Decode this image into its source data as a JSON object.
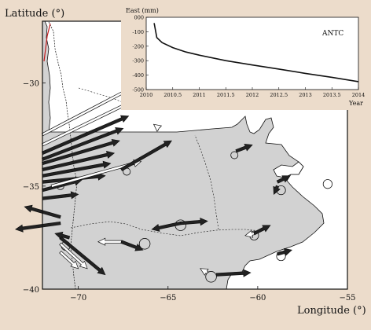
{
  "map": {
    "y_axis_label": "Latitude (°)",
    "x_axis_label": "Longitude (°)",
    "lon_ticks": [
      "−70",
      "−65",
      "−60",
      "−55"
    ],
    "lat_ticks": [
      "−30",
      "−35",
      "−40"
    ],
    "lon_range": [
      -72,
      -55
    ],
    "lat_range": [
      -40,
      -27
    ],
    "colors": {
      "sea": "#ffffff",
      "land": "#d2d2d2",
      "border": "#111111",
      "frame_bg": "#ecdccb"
    }
  },
  "inset": {
    "title": "East (mm)",
    "station": "ANTC",
    "x_axis_title": "Year",
    "x_ticks": [
      "2010",
      "2010.5",
      "2011",
      "2011.5",
      "2012",
      "2012.5",
      "2013",
      "2013.5",
      "2014"
    ],
    "y_ticks": [
      "000",
      "-100",
      "-200",
      "-300",
      "-400",
      "-500"
    ],
    "y_tick_values": [
      0,
      -100,
      -200,
      -300,
      -400,
      -500
    ],
    "x_range": [
      2010,
      2014
    ],
    "y_range": [
      -500,
      0
    ],
    "series_points": [
      [
        2010.15,
        -40
      ],
      [
        2010.2,
        -140
      ],
      [
        2010.3,
        -175
      ],
      [
        2010.5,
        -210
      ],
      [
        2010.75,
        -240
      ],
      [
        2011,
        -262
      ],
      [
        2011.5,
        -300
      ],
      [
        2012,
        -330
      ],
      [
        2012.5,
        -358
      ],
      [
        2013,
        -388
      ],
      [
        2013.5,
        -415
      ],
      [
        2014,
        -445
      ]
    ]
  },
  "arrows": [
    {
      "lon": -72,
      "lat": -32.5,
      "dlon": 5.5,
      "dlat": 2.5,
      "style": "open"
    },
    {
      "lon": -72,
      "lat": -33,
      "dlon": 5.2,
      "dlat": 2.2,
      "style": "open"
    },
    {
      "lon": -72,
      "lat": -33.4,
      "dlon": 4.8,
      "dlat": 1.8,
      "style": "filled"
    },
    {
      "lon": -72,
      "lat": -33.7,
      "dlon": 4.5,
      "dlat": 1.5,
      "style": "filled"
    },
    {
      "lon": -72,
      "lat": -33.9,
      "dlon": 4.3,
      "dlat": 1.1,
      "style": "filled"
    },
    {
      "lon": -72,
      "lat": -34.2,
      "dlon": 4.0,
      "dlat": 0.8,
      "style": "filled"
    },
    {
      "lon": -72,
      "lat": -34.5,
      "dlon": 3.8,
      "dlat": 0.6,
      "style": "filled"
    },
    {
      "lon": -72,
      "lat": -34.8,
      "dlon": 3.5,
      "dlat": 0.3,
      "style": "filled"
    },
    {
      "lon": -72,
      "lat": -35.2,
      "dlon": 2.2,
      "dlat": 0.5,
      "style": "filled"
    },
    {
      "lon": -72,
      "lat": -35.6,
      "dlon": 2.0,
      "dlat": 0.2,
      "style": "filled"
    },
    {
      "lon": -71.5,
      "lat": -35,
      "dlon": 5.0,
      "dlat": 1.2,
      "style": "open"
    },
    {
      "lon": -71,
      "lat": -36.5,
      "dlon": -2.0,
      "dlat": 0.5,
      "style": "filled"
    },
    {
      "lon": -71,
      "lat": -36.8,
      "dlon": -2.5,
      "dlat": -0.3,
      "style": "filled"
    },
    {
      "lon": -71,
      "lat": -37.5,
      "dlon": 2.5,
      "dlat": -1.8,
      "style": "filled"
    },
    {
      "lon": -71,
      "lat": -37.8,
      "dlon": 1.5,
      "dlat": -1.2,
      "style": "open"
    },
    {
      "lon": -71,
      "lat": -38.2,
      "dlon": 1.0,
      "dlat": -0.8,
      "style": "open"
    },
    {
      "lon": -70.5,
      "lat": -37.5,
      "dlon": -0.8,
      "dlat": 0.2,
      "style": "filled"
    },
    {
      "lon": -67.6,
      "lat": -34.2,
      "dlon": 2.8,
      "dlat": 1.4,
      "style": "filled"
    },
    {
      "lon": -65.5,
      "lat": -32.2,
      "dlon": -0.3,
      "dlat": 0.2,
      "style": "open"
    },
    {
      "lon": -64.3,
      "lat": -36.8,
      "dlon": 1.5,
      "dlat": 0.1,
      "style": "filled"
    },
    {
      "lon": -64.3,
      "lat": -36.8,
      "dlon": -1.6,
      "dlat": -0.3,
      "style": "filled"
    },
    {
      "lon": -67.6,
      "lat": -37.7,
      "dlon": -1.3,
      "dlat": 0.0,
      "style": "open"
    },
    {
      "lon": -67.6,
      "lat": -37.7,
      "dlon": 1.2,
      "dlat": -0.4,
      "style": "filled"
    },
    {
      "lon": -62.3,
      "lat": -39.3,
      "dlon": 1.9,
      "dlat": 0.1,
      "style": "filled"
    },
    {
      "lon": -62.8,
      "lat": -39.2,
      "dlon": -0.4,
      "dlat": 0.2,
      "style": "open"
    },
    {
      "lon": -61.2,
      "lat": -33.3,
      "dlon": 0.9,
      "dlat": 0.3,
      "style": "filled"
    },
    {
      "lon": -60.2,
      "lat": -37.3,
      "dlon": 0.9,
      "dlat": 0.4,
      "style": "filled"
    },
    {
      "lon": -60.2,
      "lat": -37.3,
      "dlon": -0.5,
      "dlat": -0.1,
      "style": "open"
    },
    {
      "lon": -58.9,
      "lat": -38.3,
      "dlon": 0.8,
      "dlat": 0.2,
      "style": "filled"
    },
    {
      "lon": -58.9,
      "lat": -34.8,
      "dlon": 0.7,
      "dlat": 0.3,
      "style": "filled"
    },
    {
      "lon": -58.9,
      "lat": -35.0,
      "dlon": -0.2,
      "dlat": -0.4,
      "style": "filled"
    }
  ],
  "sites": [
    {
      "lon": -70.7,
      "lat": -37.9,
      "r": 0.25
    },
    {
      "lon": -71.0,
      "lat": -35.0,
      "r": 0.2
    },
    {
      "lon": -67.3,
      "lat": -34.3,
      "r": 0.2
    },
    {
      "lon": -64.3,
      "lat": -36.9,
      "r": 0.3
    },
    {
      "lon": -66.3,
      "lat": -37.8,
      "r": 0.3
    },
    {
      "lon": -62.6,
      "lat": -39.4,
      "r": 0.3
    },
    {
      "lon": -61.3,
      "lat": -33.5,
      "r": 0.2
    },
    {
      "lon": -60.2,
      "lat": -37.4,
      "r": 0.25
    },
    {
      "lon": -58.7,
      "lat": -38.4,
      "r": 0.25
    },
    {
      "lon": -58.7,
      "lat": -35.2,
      "r": 0.25
    },
    {
      "lon": -56.1,
      "lat": -34.9,
      "r": 0.25
    }
  ]
}
